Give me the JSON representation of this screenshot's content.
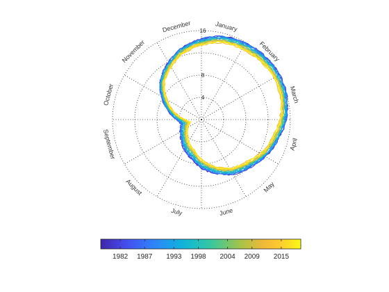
{
  "chart_data": {
    "type": "line",
    "polar": true,
    "description_units": {
      "radius": "unlabeled quantity on the printed radial scale",
      "angle": "month of year, clockwise from top"
    },
    "months": [
      "January",
      "February",
      "March",
      "April",
      "May",
      "June",
      "July",
      "August",
      "September",
      "October",
      "November",
      "December"
    ],
    "radial_ticks": [
      4,
      8,
      12,
      16
    ],
    "radial_tick_labels": [
      "4",
      "8",
      "",
      "16"
    ],
    "rlim": [
      0,
      16
    ],
    "grid": true,
    "colorbar": {
      "colormap": "parula",
      "range": [
        1978,
        2019
      ],
      "ticks": [
        1982,
        1987,
        1993,
        1998,
        2004,
        2009,
        2015
      ],
      "tick_labels": [
        "1982",
        "1987",
        "1993",
        "1998",
        "2004",
        "2009",
        "2015"
      ],
      "placement": "bottom"
    },
    "series_years": [
      1979,
      1981,
      1983,
      1985,
      1987,
      1989,
      1991,
      1993,
      1995,
      1997,
      1999,
      2001,
      2003,
      2005,
      2007,
      2009,
      2011,
      2013,
      2015,
      2017,
      2018
    ],
    "average_profile": {
      "day_of_year": [
        1,
        15,
        32,
        46,
        60,
        75,
        91,
        105,
        121,
        135,
        152,
        166,
        182,
        196,
        213,
        227,
        244,
        258,
        263,
        274,
        288,
        305,
        319,
        335,
        349,
        365
      ],
      "value_early": [
        14.5,
        15.4,
        15.9,
        16.1,
        16.2,
        16.0,
        15.3,
        14.4,
        13.4,
        12.4,
        11.4,
        10.2,
        8.9,
        7.4,
        6.3,
        5.3,
        4.4,
        3.9,
        3.8,
        4.4,
        6.0,
        8.2,
        10.2,
        11.8,
        13.2,
        14.4
      ],
      "value_late": [
        13.4,
        14.3,
        14.7,
        14.9,
        15.1,
        14.9,
        14.2,
        13.3,
        12.4,
        11.2,
        10.2,
        8.9,
        7.3,
        5.7,
        4.6,
        3.7,
        2.8,
        2.2,
        2.0,
        2.8,
        4.7,
        7.2,
        9.3,
        10.9,
        12.3,
        13.4
      ]
    }
  }
}
